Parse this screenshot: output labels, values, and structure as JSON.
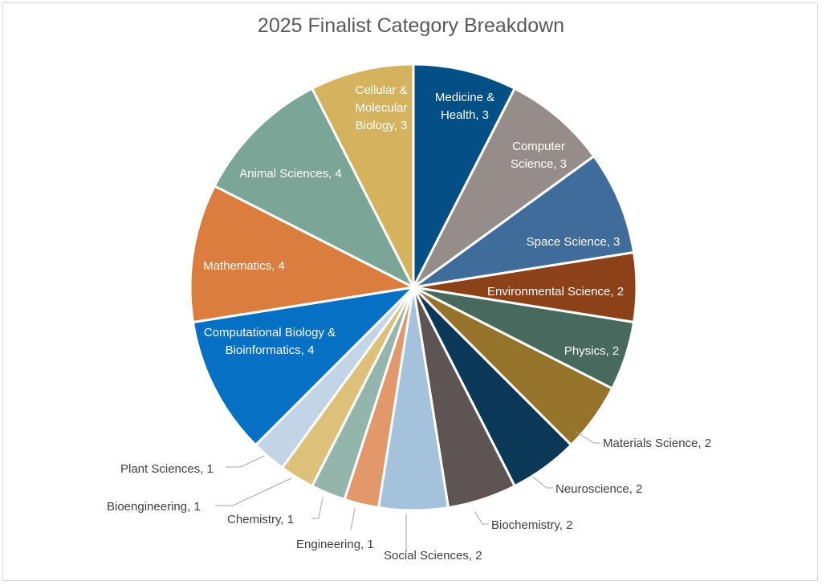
{
  "chart_data": {
    "type": "pie",
    "title": "2025 Finalist Category Breakdown",
    "categories": [
      "Medicine & Health",
      "Computer Science",
      "Space Science",
      "Environmental Science",
      "Physics",
      "Materials Science",
      "Neuroscience",
      "Biochemistry",
      "Social Sciences",
      "Engineering",
      "Chemistry",
      "Bioengineering",
      "Plant Sciences",
      "Computational Biology & Bioinformatics",
      "Mathematics",
      "Animal Sciences",
      "Cellular & Molecular Biology"
    ],
    "values": [
      3,
      3,
      3,
      2,
      2,
      2,
      2,
      2,
      2,
      1,
      1,
      1,
      1,
      4,
      4,
      4,
      3
    ],
    "colors": [
      "#044f85",
      "#968d8a",
      "#3f6c9b",
      "#8d4119",
      "#486a5e",
      "#95732a",
      "#0b3856",
      "#5d5453",
      "#a5c2dc",
      "#e3986c",
      "#93b5ab",
      "#ddc07a",
      "#c2d4e6",
      "#0570c4",
      "#db7d3f",
      "#7ba597",
      "#d5b25e"
    ],
    "data_labels": [
      "Medicine & Health, 3",
      "Computer Science, 3",
      "Space Science, 3",
      "Environmental Science, 2",
      "Physics, 2",
      "Materials Science, 2",
      "Neuroscience, 2",
      "Biochemistry, 2",
      "Social Sciences, 2",
      "Engineering, 1",
      "Chemistry, 1",
      "Bioengineering, 1",
      "Plant Sciences, 1",
      "Computational Biology & Bioinformatics, 4",
      "Mathematics, 4",
      "Animal Sciences, 4",
      "Cellular & Molecular Biology, 3"
    ],
    "legend": "none"
  }
}
